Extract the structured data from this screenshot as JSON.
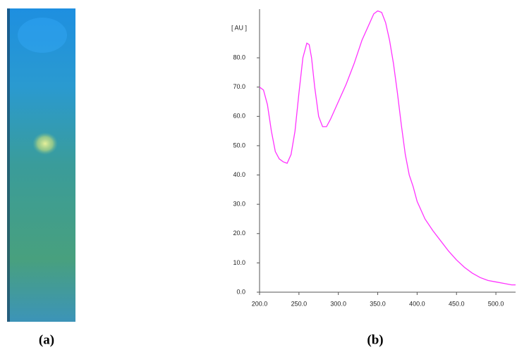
{
  "figure": {
    "panel_labels": [
      "(a)",
      "(b)"
    ]
  },
  "chart_data": {
    "type": "line",
    "y_label": "[ AU ]",
    "color": "#ff33ff",
    "x": [
      200,
      205,
      210,
      215,
      220,
      225,
      230,
      235,
      240,
      245,
      250,
      255,
      260,
      263,
      266,
      270,
      275,
      280,
      285,
      290,
      300,
      310,
      320,
      330,
      340,
      345,
      350,
      355,
      360,
      365,
      370,
      375,
      380,
      385,
      390,
      395,
      400,
      410,
      420,
      430,
      440,
      450,
      460,
      470,
      480,
      490,
      500,
      510,
      520,
      525
    ],
    "values": [
      70,
      69,
      64,
      55,
      48,
      45.5,
      44.5,
      44,
      47,
      55,
      68,
      80,
      85,
      84.5,
      80,
      70,
      60,
      56.5,
      56.5,
      59,
      65,
      71,
      78,
      86,
      92,
      95,
      96,
      95.5,
      92,
      86,
      78,
      68,
      57,
      47,
      40,
      36,
      31,
      25,
      21,
      17.5,
      14,
      11,
      8.5,
      6.5,
      5,
      4,
      3.5,
      3,
      2.5,
      2.5
    ],
    "xlim": [
      200,
      525
    ],
    "ylim": [
      0,
      96.6
    ],
    "xticks": [
      {
        "value": 200,
        "label": "200.0"
      },
      {
        "value": 250,
        "label": "250.0"
      },
      {
        "value": 300,
        "label": "300.0"
      },
      {
        "value": 350,
        "label": "350.0"
      },
      {
        "value": 400,
        "label": "400.0"
      },
      {
        "value": 450,
        "label": "450.0"
      },
      {
        "value": 500,
        "label": "500.0"
      }
    ],
    "yticks": [
      {
        "value": 0,
        "label": "0.0"
      },
      {
        "value": 10,
        "label": "10.0"
      },
      {
        "value": 20,
        "label": "20.0"
      },
      {
        "value": 30,
        "label": "30.0"
      },
      {
        "value": 40,
        "label": "40.0"
      },
      {
        "value": 50,
        "label": "50.0"
      },
      {
        "value": 60,
        "label": "60.0"
      },
      {
        "value": 70,
        "label": "70.0"
      },
      {
        "value": 80,
        "label": "80.0"
      }
    ]
  }
}
